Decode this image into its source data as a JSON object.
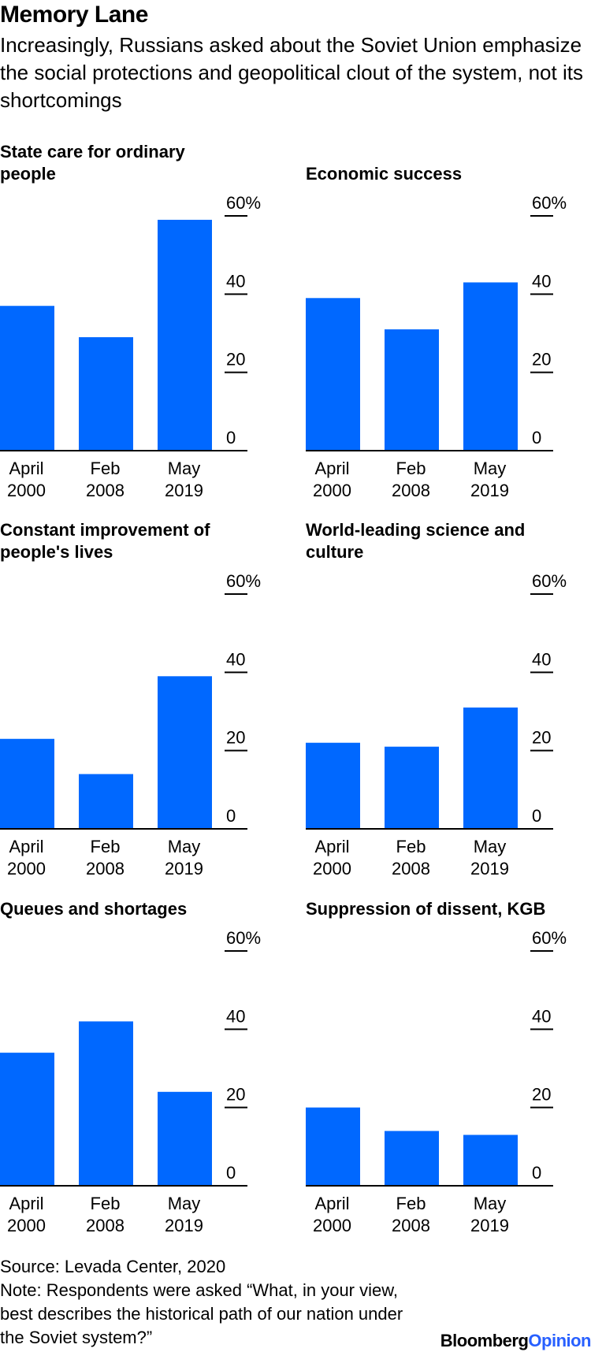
{
  "header": {
    "title": "Memory Lane",
    "subtitle": "Increasingly, Russians asked about the Soviet Union emphasize the social protections and geopolitical clout of the system, not its shortcomings"
  },
  "colors": {
    "bar": "#0068ff",
    "axis": "#000000",
    "brand_accent": "#2860ff"
  },
  "chart_data": [
    {
      "type": "bar",
      "title_lines": [
        "State care for ordinary",
        "people"
      ],
      "categories": [
        [
          "April",
          "2000"
        ],
        [
          "Feb",
          "2008"
        ],
        [
          "May",
          "2019"
        ]
      ],
      "values": [
        37,
        29,
        59
      ],
      "ylim": [
        0,
        60
      ],
      "yticks": [
        "60%",
        "40",
        "20",
        "0"
      ],
      "ylabel": "",
      "xlabel": ""
    },
    {
      "type": "bar",
      "title_lines": [
        "Economic success"
      ],
      "categories": [
        [
          "April",
          "2000"
        ],
        [
          "Feb",
          "2008"
        ],
        [
          "May",
          "2019"
        ]
      ],
      "values": [
        39,
        31,
        43
      ],
      "ylim": [
        0,
        60
      ],
      "yticks": [
        "60%",
        "40",
        "20",
        "0"
      ],
      "ylabel": "",
      "xlabel": ""
    },
    {
      "type": "bar",
      "title_lines": [
        "Constant improvement of",
        "people's lives"
      ],
      "categories": [
        [
          "April",
          "2000"
        ],
        [
          "Feb",
          "2008"
        ],
        [
          "May",
          "2019"
        ]
      ],
      "values": [
        23,
        14,
        39
      ],
      "ylim": [
        0,
        60
      ],
      "yticks": [
        "60%",
        "40",
        "20",
        "0"
      ],
      "ylabel": "",
      "xlabel": ""
    },
    {
      "type": "bar",
      "title_lines": [
        "World-leading science and",
        "culture"
      ],
      "categories": [
        [
          "April",
          "2000"
        ],
        [
          "Feb",
          "2008"
        ],
        [
          "May",
          "2019"
        ]
      ],
      "values": [
        22,
        21,
        31
      ],
      "ylim": [
        0,
        60
      ],
      "yticks": [
        "60%",
        "40",
        "20",
        "0"
      ],
      "ylabel": "",
      "xlabel": ""
    },
    {
      "type": "bar",
      "title_lines": [
        "Queues and shortages"
      ],
      "categories": [
        [
          "April",
          "2000"
        ],
        [
          "Feb",
          "2008"
        ],
        [
          "May",
          "2019"
        ]
      ],
      "values": [
        34,
        42,
        24
      ],
      "ylim": [
        0,
        60
      ],
      "yticks": [
        "60%",
        "40",
        "20",
        "0"
      ],
      "ylabel": "",
      "xlabel": ""
    },
    {
      "type": "bar",
      "title_lines": [
        "Suppression of dissent, KGB"
      ],
      "categories": [
        [
          "April",
          "2000"
        ],
        [
          "Feb",
          "2008"
        ],
        [
          "May",
          "2019"
        ]
      ],
      "values": [
        20,
        14,
        13
      ],
      "ylim": [
        0,
        60
      ],
      "yticks": [
        "60%",
        "40",
        "20",
        "0"
      ],
      "ylabel": "",
      "xlabel": ""
    }
  ],
  "footer": {
    "source": "Source: Levada Center, 2020",
    "note": "Note: Respondents were asked “What, in your view, best describes the historical path of our nation under the Soviet system?”"
  },
  "brand": {
    "name": "Bloomberg",
    "accent": "Opinion"
  }
}
